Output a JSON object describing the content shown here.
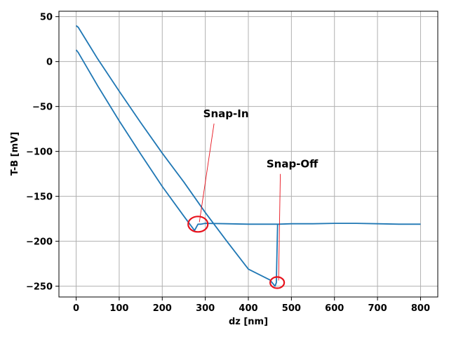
{
  "chart_data": {
    "type": "line",
    "xlabel": "dz [nm]",
    "ylabel": "T-B [mV]",
    "xlim": [
      -40,
      840
    ],
    "ylim": [
      -262,
      56
    ],
    "xticks": [
      0,
      100,
      200,
      300,
      400,
      500,
      600,
      700,
      800
    ],
    "yticks": [
      50,
      0,
      -50,
      -100,
      -150,
      -200,
      -250
    ],
    "xtick_labels": [
      "0",
      "100",
      "200",
      "300",
      "400",
      "500",
      "600",
      "700",
      "800"
    ],
    "ytick_labels": [
      "50",
      "0",
      "−50",
      "−100",
      "−150",
      "−200",
      "−250"
    ],
    "grid": true,
    "color": "#1f77b4",
    "series": [
      {
        "x": [
          0,
          5,
          50,
          100,
          150,
          200,
          250,
          275,
          283,
          290,
          300,
          350,
          400,
          450,
          470,
          500,
          550,
          600,
          650,
          700,
          750,
          800
        ],
        "y": [
          13,
          10,
          -27,
          -66,
          -103,
          -139,
          -172,
          -188,
          -181,
          -181,
          -180,
          -180.5,
          -181,
          -181,
          -181,
          -180.5,
          -180.5,
          -180,
          -180,
          -180.5,
          -181,
          -181
        ]
      },
      {
        "x": [
          0,
          5,
          50,
          100,
          150,
          200,
          250,
          300,
          350,
          400,
          450,
          462,
          465,
          468
        ],
        "y": [
          40,
          38,
          3,
          -33,
          -68,
          -102,
          -134,
          -168,
          -200,
          -231,
          -243,
          -250,
          -246,
          -181
        ]
      }
    ],
    "annotations": [
      {
        "text": "Snap-In",
        "point": [
          283,
          -181
        ],
        "text_at": [
          348,
          -62
        ]
      },
      {
        "text": "Snap-Off",
        "point": [
          467,
          -246
        ],
        "text_at": [
          502,
          -118
        ]
      }
    ],
    "marker_color": "#e8121c"
  }
}
